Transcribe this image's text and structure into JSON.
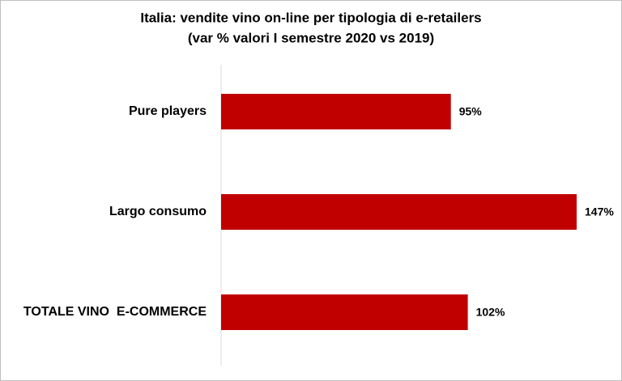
{
  "chart_data": {
    "type": "bar",
    "orientation": "horizontal",
    "title": "Italia: vendite vino on-line per tipologia di e-retailers",
    "subtitle": "(var % valori I semestre 2020 vs 2019)",
    "categories": [
      "Pure players",
      "Largo consumo",
      "TOTALE VINO  E-COMMERCE"
    ],
    "values": [
      95,
      147,
      102
    ],
    "value_labels": [
      "95%",
      "147%",
      "102%"
    ],
    "color": "#c00000"
  }
}
